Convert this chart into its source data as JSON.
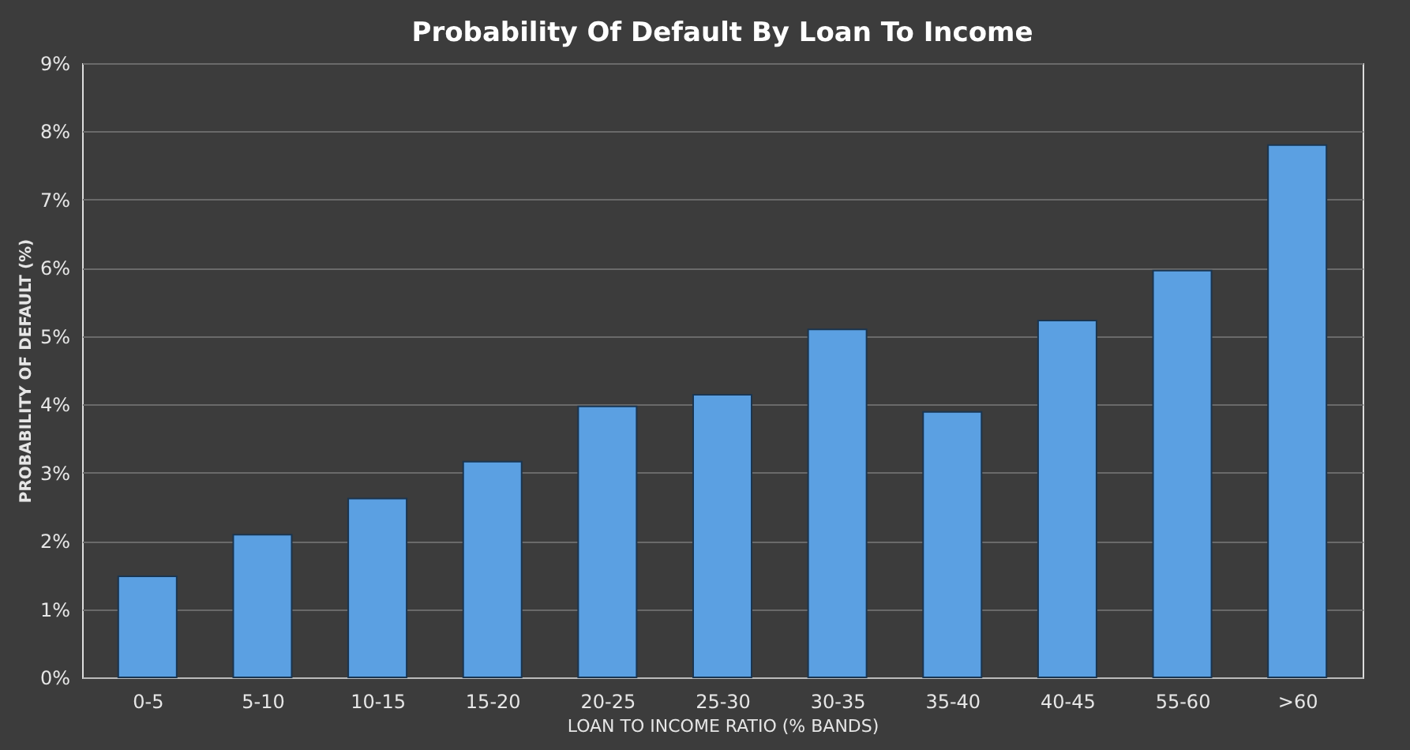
{
  "chart_data": {
    "type": "bar",
    "title": "Probability  Of Default By Loan To Income",
    "xlabel": "LOAN TO INCOME RATIO (% BANDS)",
    "ylabel": "PROBABILITY OF DEFAULT (%)",
    "categories": [
      "0-5",
      "5-10",
      "10-15",
      "15-20",
      "20-25",
      "25-30",
      "30-35",
      "35-40",
      "40-45",
      "55-60",
      ">60"
    ],
    "values": [
      1.48,
      2.09,
      2.62,
      3.16,
      3.97,
      4.14,
      5.1,
      3.89,
      5.23,
      5.96,
      7.8
    ],
    "color": "#5ba0e2",
    "ylim": [
      0,
      9
    ],
    "yticks": [
      {
        "value": 0,
        "label": "0%"
      },
      {
        "value": 1,
        "label": "1%"
      },
      {
        "value": 2,
        "label": "2%"
      },
      {
        "value": 3,
        "label": "3%"
      },
      {
        "value": 4,
        "label": "4%"
      },
      {
        "value": 5,
        "label": "5%"
      },
      {
        "value": 6,
        "label": "6%"
      },
      {
        "value": 7,
        "label": "7%"
      },
      {
        "value": 8,
        "label": "8%"
      },
      {
        "value": 9,
        "label": "9%"
      }
    ],
    "grid": "y"
  }
}
